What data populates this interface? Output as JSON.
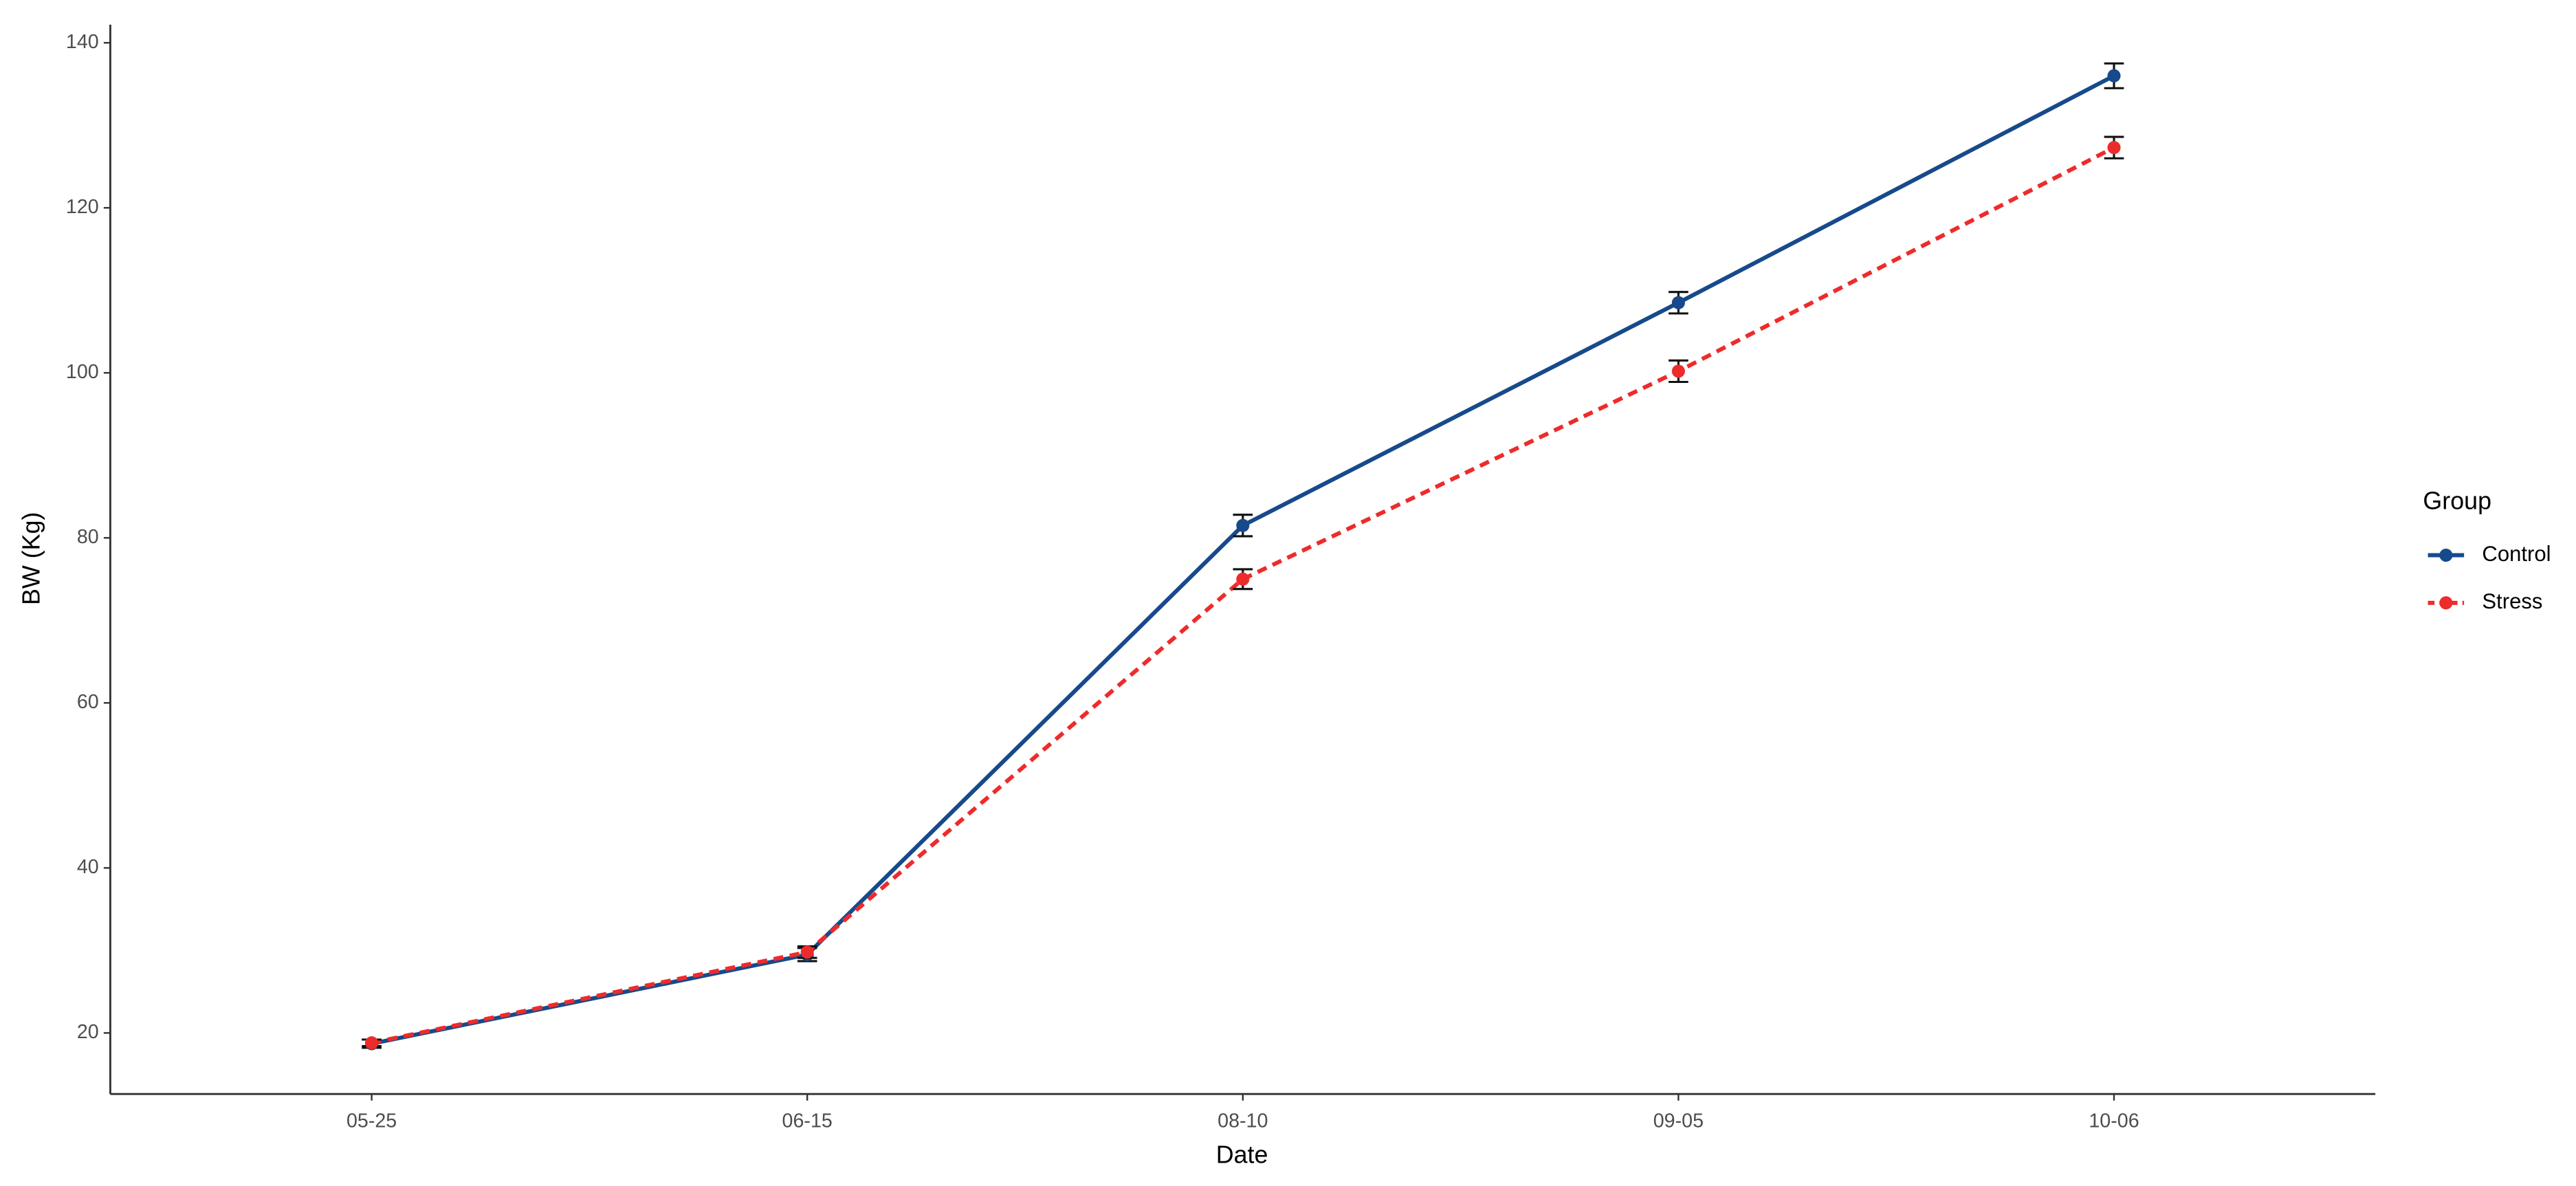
{
  "chart_data": {
    "type": "line",
    "x_label": "Date",
    "y_label": "BW (Kg)",
    "categories": [
      "05-25",
      "06-15",
      "08-10",
      "09-05",
      "10-06"
    ],
    "series": [
      {
        "name": "Control",
        "color": "#174a8b",
        "linestyle": "solid",
        "values": [
          18.7,
          29.5,
          81.5,
          108.5,
          136.0
        ],
        "errors": [
          0.5,
          0.8,
          1.3,
          1.3,
          1.5
        ]
      },
      {
        "name": "Stress",
        "color": "#ee2b2b",
        "linestyle": "dashed",
        "values": [
          18.8,
          29.8,
          75.0,
          100.2,
          127.3
        ],
        "errors": [
          0.4,
          0.7,
          1.2,
          1.3,
          1.3
        ]
      }
    ],
    "ylim": [
      12.6,
      142.2
    ],
    "yticks": [
      20,
      40,
      60,
      80,
      100,
      120,
      140
    ],
    "legend_title": "Group",
    "legend_position": "right",
    "grid": false
  }
}
